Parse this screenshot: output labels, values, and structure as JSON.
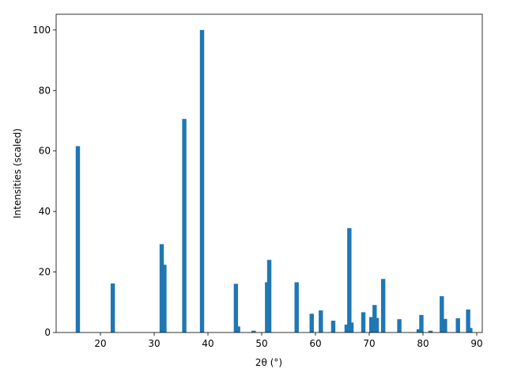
{
  "chart_data": {
    "type": "bar",
    "xlabel": "2θ (°)",
    "ylabel": "Intensities (scaled)",
    "x": [
      15.8,
      22.3,
      31.4,
      31.9,
      35.6,
      38.9,
      45.2,
      45.6,
      48.5,
      51.0,
      51.4,
      56.5,
      59.3,
      61.0,
      63.3,
      65.8,
      66.3,
      66.7,
      68.9,
      70.4,
      71.0,
      71.4,
      72.6,
      75.6,
      79.2,
      79.7,
      81.4,
      83.5,
      84.1,
      86.5,
      88.4,
      88.8
    ],
    "values": [
      61.6,
      16.2,
      29.2,
      22.4,
      70.6,
      100,
      16.1,
      2.0,
      0.6,
      16.6,
      24.0,
      16.6,
      6.2,
      7.3,
      3.9,
      2.6,
      34.5,
      3.3,
      6.7,
      5.1,
      9.1,
      4.8,
      17.7,
      4.4,
      1.1,
      5.8,
      0.6,
      12.0,
      4.5,
      4.7,
      7.6,
      1.5
    ],
    "color": "#1f77b4",
    "xlim": [
      11.76,
      91.03
    ],
    "ylim": [
      0,
      105.2
    ],
    "xticks": [
      20,
      30,
      40,
      50,
      60,
      70,
      80,
      90
    ],
    "yticks": [
      0,
      20,
      40,
      60,
      80,
      100
    ]
  }
}
